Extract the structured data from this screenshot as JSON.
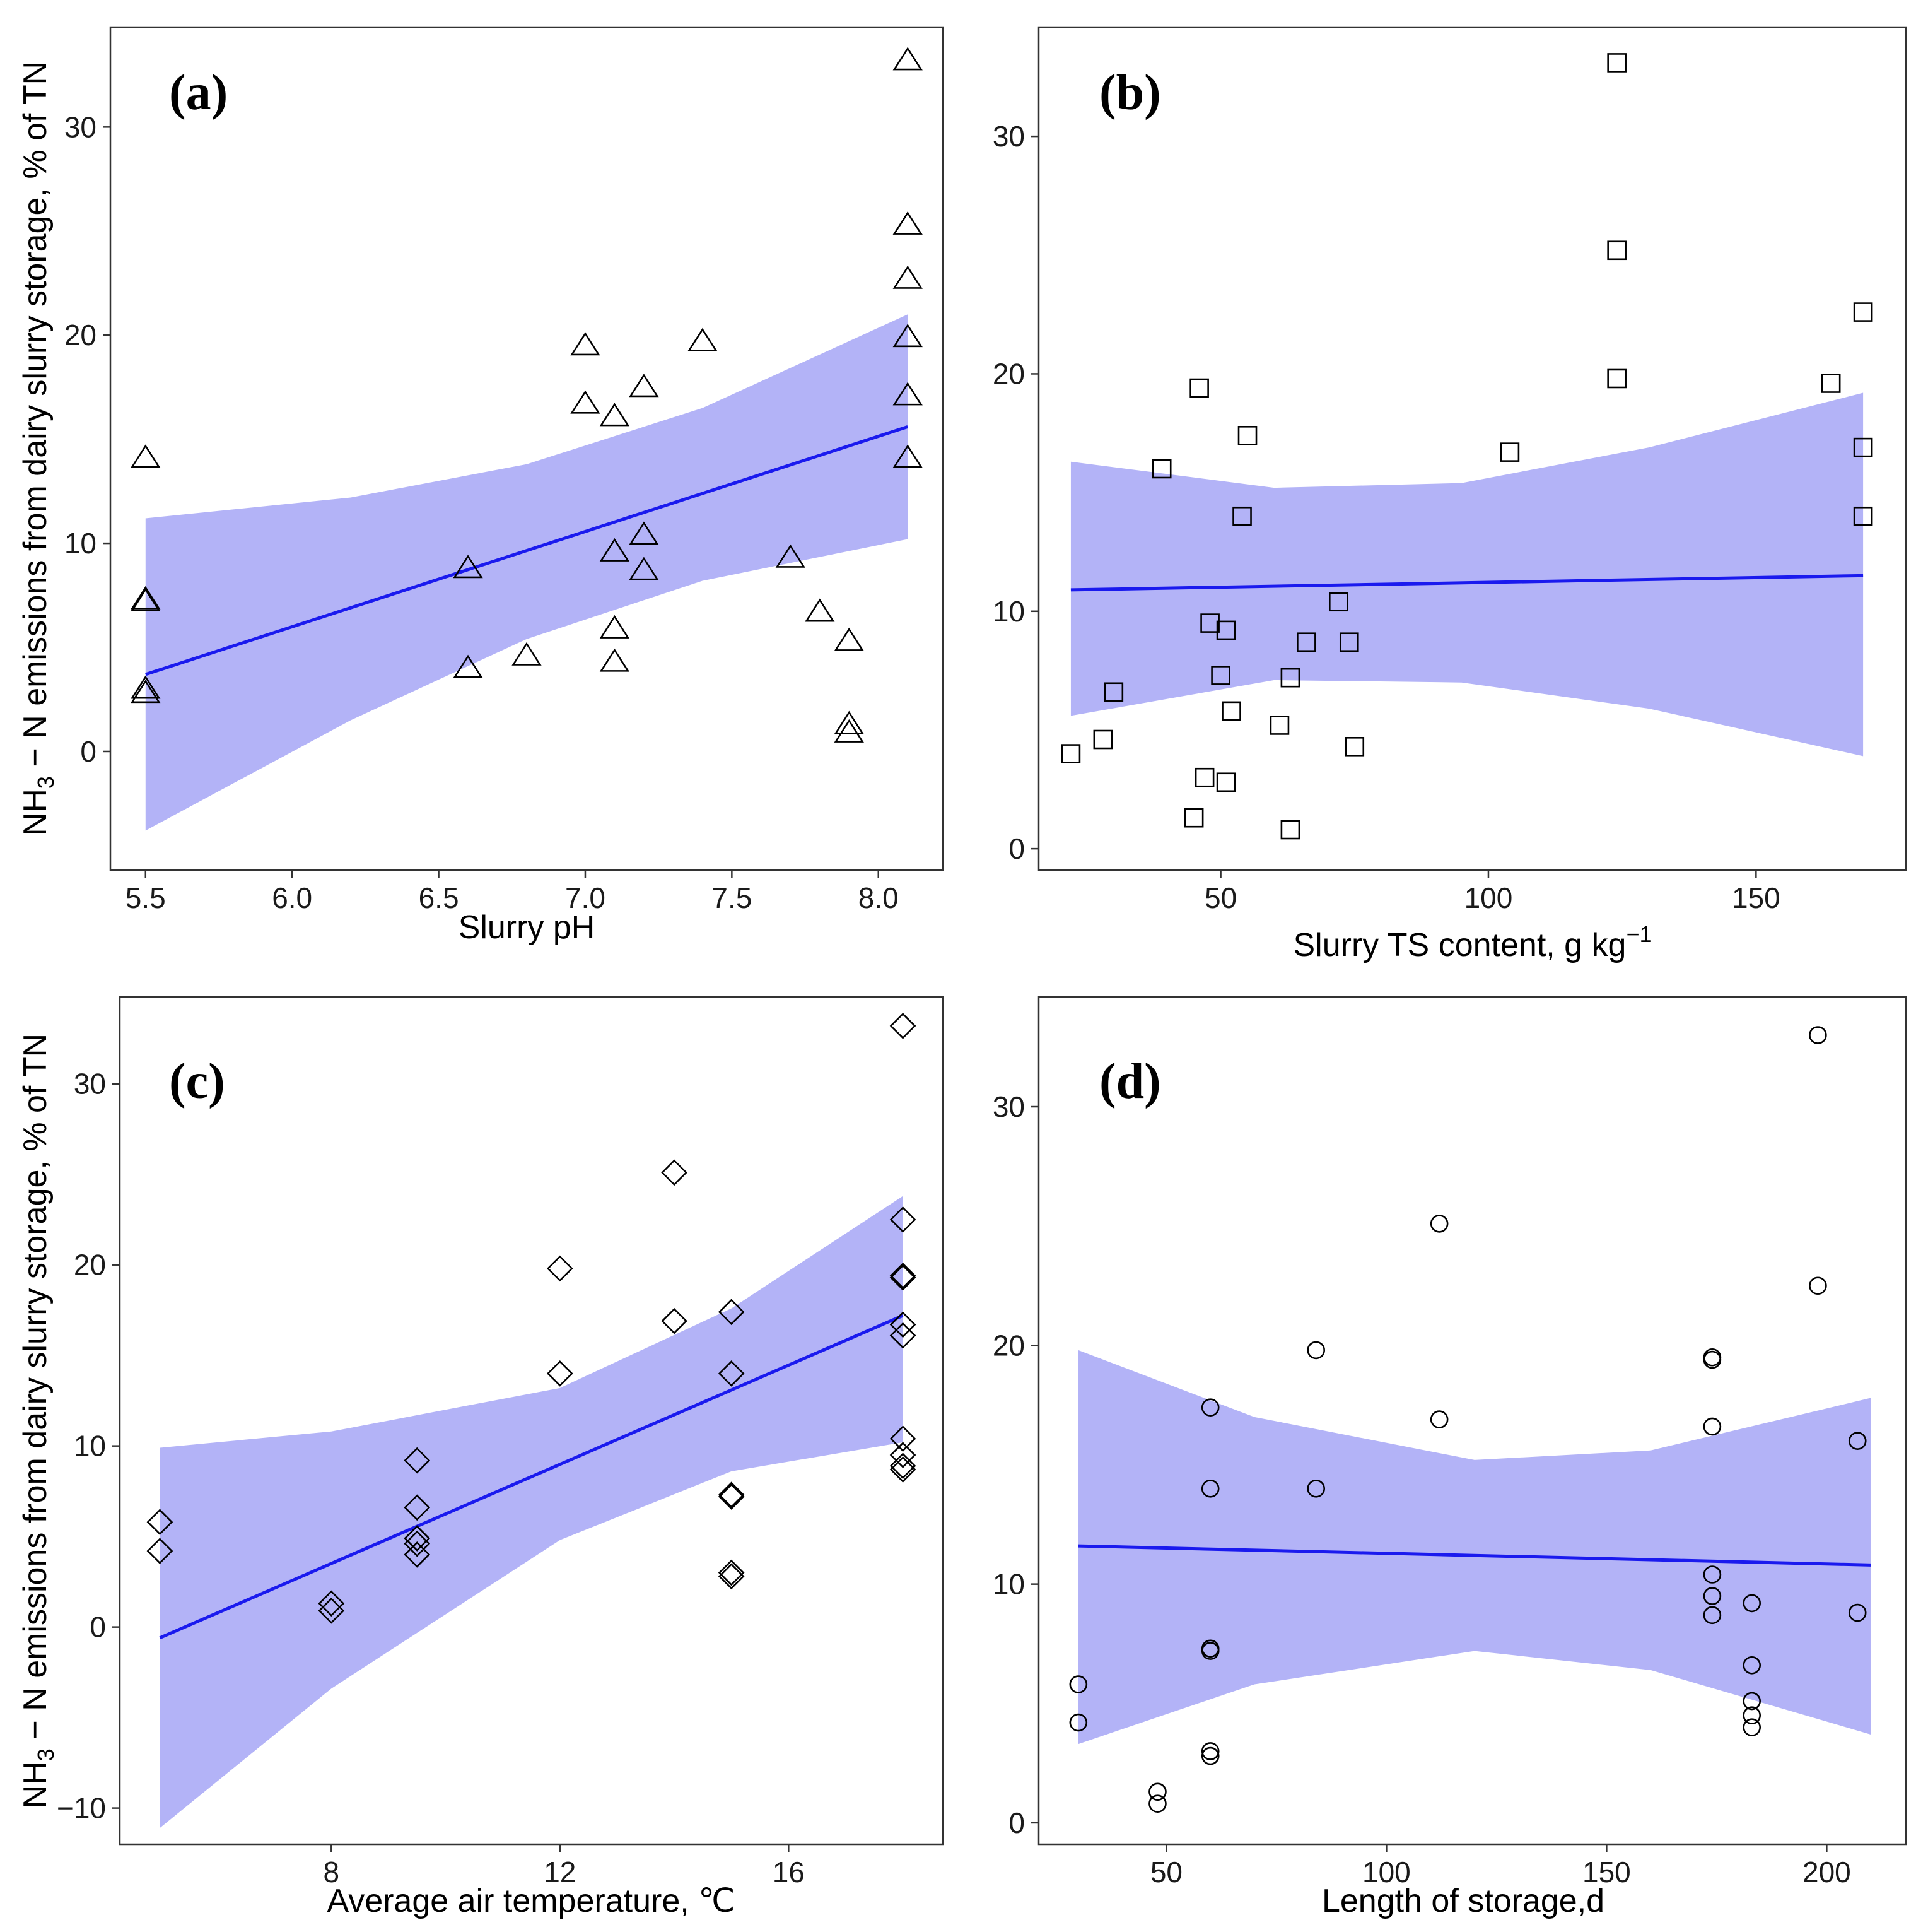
{
  "y_axis_title": {
    "prefix": "NH",
    "subscript": "3",
    "suffix": " − N emissions from dairy slurry storage, % of TN"
  },
  "colors": {
    "band": "#b3b3f7",
    "line": "#1a1aee",
    "marker": "#000000",
    "frame": "#333333"
  },
  "chart_data": [
    {
      "id": "a",
      "type": "scatter",
      "panel_label": "(a)",
      "marker": "triangle",
      "xlabel": "Slurry pH",
      "xlabel_superscript": "",
      "ylabel": "NH3 − N emissions from dairy slurry storage, % of TN",
      "xlim": [
        5.38,
        8.22
      ],
      "ylim": [
        -5.7,
        34.8
      ],
      "xticks": [
        5.5,
        6.0,
        6.5,
        7.0,
        7.5,
        8.0
      ],
      "xtick_labels": [
        "5.5",
        "6.0",
        "6.5",
        "7.0",
        "7.5",
        "8.0"
      ],
      "yticks": [
        0,
        10,
        20,
        30
      ],
      "ytick_labels": [
        "0",
        "10",
        "20",
        "30"
      ],
      "points": [
        [
          5.5,
          14.1
        ],
        [
          5.5,
          7.3
        ],
        [
          5.5,
          7.2
        ],
        [
          5.5,
          3.0
        ],
        [
          5.5,
          2.8
        ],
        [
          6.6,
          8.8
        ],
        [
          6.6,
          4.0
        ],
        [
          6.8,
          4.6
        ],
        [
          7.0,
          19.5
        ],
        [
          7.0,
          16.7
        ],
        [
          7.1,
          16.1
        ],
        [
          7.1,
          9.6
        ],
        [
          7.1,
          5.9
        ],
        [
          7.1,
          4.3
        ],
        [
          7.2,
          17.5
        ],
        [
          7.2,
          10.4
        ],
        [
          7.2,
          8.7
        ],
        [
          7.4,
          19.7
        ],
        [
          7.7,
          9.3
        ],
        [
          7.8,
          6.7
        ],
        [
          7.9,
          5.3
        ],
        [
          7.9,
          1.3
        ],
        [
          7.9,
          0.9
        ],
        [
          8.1,
          33.2
        ],
        [
          8.1,
          25.3
        ],
        [
          8.1,
          22.7
        ],
        [
          8.1,
          19.9
        ],
        [
          8.1,
          17.1
        ],
        [
          8.1,
          14.1
        ]
      ],
      "fit_line": [
        [
          5.5,
          3.7
        ],
        [
          8.1,
          15.6
        ]
      ],
      "ci_upper": [
        [
          5.5,
          11.2
        ],
        [
          6.2,
          12.2
        ],
        [
          6.8,
          13.8
        ],
        [
          7.4,
          16.5
        ],
        [
          8.1,
          21.0
        ]
      ],
      "ci_lower": [
        [
          5.5,
          -3.8
        ],
        [
          6.2,
          1.5
        ],
        [
          6.8,
          5.4
        ],
        [
          7.4,
          8.2
        ],
        [
          8.1,
          10.2
        ]
      ]
    },
    {
      "id": "b",
      "type": "scatter",
      "panel_label": "(b)",
      "marker": "square",
      "xlabel": "Slurry TS content, g kg",
      "xlabel_superscript": "−1",
      "ylabel": "",
      "xlim": [
        16,
        178
      ],
      "ylim": [
        -0.9,
        34.6
      ],
      "xticks": [
        50,
        100,
        150
      ],
      "xtick_labels": [
        "50",
        "100",
        "150"
      ],
      "yticks": [
        0,
        10,
        20,
        30
      ],
      "ytick_labels": [
        "0",
        "10",
        "20",
        "30"
      ],
      "points": [
        [
          22,
          4.0
        ],
        [
          28,
          4.6
        ],
        [
          30,
          6.6
        ],
        [
          39,
          16.0
        ],
        [
          45,
          1.3
        ],
        [
          46,
          19.4
        ],
        [
          47,
          3.0
        ],
        [
          48,
          9.5
        ],
        [
          50,
          7.3
        ],
        [
          51,
          9.2
        ],
        [
          51,
          2.8
        ],
        [
          52,
          5.8
        ],
        [
          54,
          14.0
        ],
        [
          55,
          17.4
        ],
        [
          61,
          5.2
        ],
        [
          63,
          7.2
        ],
        [
          63,
          0.8
        ],
        [
          66,
          8.7
        ],
        [
          72,
          10.4
        ],
        [
          74,
          8.7
        ],
        [
          75,
          4.3
        ],
        [
          104,
          16.7
        ],
        [
          124,
          33.1
        ],
        [
          124,
          25.2
        ],
        [
          124,
          19.8
        ],
        [
          164,
          19.6
        ],
        [
          170,
          22.6
        ],
        [
          170,
          16.9
        ],
        [
          170,
          14.0
        ]
      ],
      "fit_line": [
        [
          22,
          10.9
        ],
        [
          170,
          11.5
        ]
      ],
      "ci_upper": [
        [
          22,
          16.3
        ],
        [
          60,
          15.2
        ],
        [
          95,
          15.4
        ],
        [
          130,
          16.9
        ],
        [
          170,
          19.2
        ]
      ],
      "ci_lower": [
        [
          22,
          5.6
        ],
        [
          60,
          7.1
        ],
        [
          95,
          7.0
        ],
        [
          130,
          5.9
        ],
        [
          170,
          3.9
        ]
      ]
    },
    {
      "id": "c",
      "type": "scatter",
      "panel_label": "(c)",
      "marker": "diamond",
      "xlabel": "Average air temperature, ℃",
      "xlabel_superscript": "",
      "ylabel": "NH3 − N emissions from dairy slurry storage, % of TN",
      "xlim": [
        4.3,
        18.7
      ],
      "ylim": [
        -12.0,
        34.8
      ],
      "xticks": [
        8,
        12,
        16
      ],
      "xtick_labels": [
        "8",
        "12",
        "16"
      ],
      "yticks": [
        -10,
        0,
        10,
        20,
        30
      ],
      "ytick_labels": [
        "−10",
        "0",
        "10",
        "20",
        "30"
      ],
      "points": [
        [
          5,
          5.8
        ],
        [
          5,
          4.2
        ],
        [
          8,
          1.3
        ],
        [
          8,
          0.9
        ],
        [
          9.5,
          9.2
        ],
        [
          9.5,
          6.6
        ],
        [
          9.5,
          4.9
        ],
        [
          9.5,
          4.6
        ],
        [
          9.5,
          4.0
        ],
        [
          12,
          19.8
        ],
        [
          12,
          14.0
        ],
        [
          14,
          25.1
        ],
        [
          14,
          16.9
        ],
        [
          15,
          17.4
        ],
        [
          15,
          14.0
        ],
        [
          15,
          7.3
        ],
        [
          15,
          7.2
        ],
        [
          15,
          3.0
        ],
        [
          15,
          2.8
        ],
        [
          18,
          33.2
        ],
        [
          18,
          22.5
        ],
        [
          18,
          19.4
        ],
        [
          18,
          19.3
        ],
        [
          18,
          16.7
        ],
        [
          18,
          16.1
        ],
        [
          18,
          10.4
        ],
        [
          18,
          9.5
        ],
        [
          18,
          8.9
        ],
        [
          18,
          8.7
        ]
      ],
      "fit_line": [
        [
          5,
          -0.6
        ],
        [
          18,
          17.2
        ]
      ],
      "ci_upper": [
        [
          5,
          9.9
        ],
        [
          8,
          10.8
        ],
        [
          12,
          13.2
        ],
        [
          15,
          17.6
        ],
        [
          18,
          23.8
        ]
      ],
      "ci_lower": [
        [
          5,
          -11.1
        ],
        [
          8,
          -3.4
        ],
        [
          12,
          4.8
        ],
        [
          15,
          8.6
        ],
        [
          18,
          10.2
        ]
      ]
    },
    {
      "id": "d",
      "type": "scatter",
      "panel_label": "(d)",
      "marker": "circle",
      "xlabel": "Length of storage,d",
      "xlabel_superscript": "",
      "ylabel": "",
      "xlim": [
        21,
        218
      ],
      "ylim": [
        -0.9,
        34.6
      ],
      "xticks": [
        50,
        100,
        150,
        200
      ],
      "xtick_labels": [
        "50",
        "100",
        "150",
        "200"
      ],
      "yticks": [
        0,
        10,
        20,
        30
      ],
      "ytick_labels": [
        "0",
        "10",
        "20",
        "30"
      ],
      "points": [
        [
          30,
          5.8
        ],
        [
          30,
          4.2
        ],
        [
          48,
          1.3
        ],
        [
          48,
          0.8
        ],
        [
          60,
          17.4
        ],
        [
          60,
          14.0
        ],
        [
          60,
          7.3
        ],
        [
          60,
          7.2
        ],
        [
          60,
          3.0
        ],
        [
          60,
          2.8
        ],
        [
          84,
          19.8
        ],
        [
          84,
          14.0
        ],
        [
          112,
          25.1
        ],
        [
          112,
          16.9
        ],
        [
          174,
          19.5
        ],
        [
          174,
          19.4
        ],
        [
          174,
          16.6
        ],
        [
          174,
          10.4
        ],
        [
          174,
          9.5
        ],
        [
          174,
          8.7
        ],
        [
          183,
          9.2
        ],
        [
          183,
          6.6
        ],
        [
          183,
          5.1
        ],
        [
          183,
          4.5
        ],
        [
          183,
          4.0
        ],
        [
          198,
          33.0
        ],
        [
          198,
          22.5
        ],
        [
          207,
          16.0
        ],
        [
          207,
          8.8
        ]
      ],
      "fit_line": [
        [
          30,
          11.6
        ],
        [
          210,
          10.8
        ]
      ],
      "ci_upper": [
        [
          30,
          19.8
        ],
        [
          70,
          17.0
        ],
        [
          120,
          15.2
        ],
        [
          160,
          15.6
        ],
        [
          210,
          17.8
        ]
      ],
      "ci_lower": [
        [
          30,
          3.3
        ],
        [
          70,
          5.8
        ],
        [
          120,
          7.2
        ],
        [
          160,
          6.4
        ],
        [
          210,
          3.7
        ]
      ]
    }
  ]
}
